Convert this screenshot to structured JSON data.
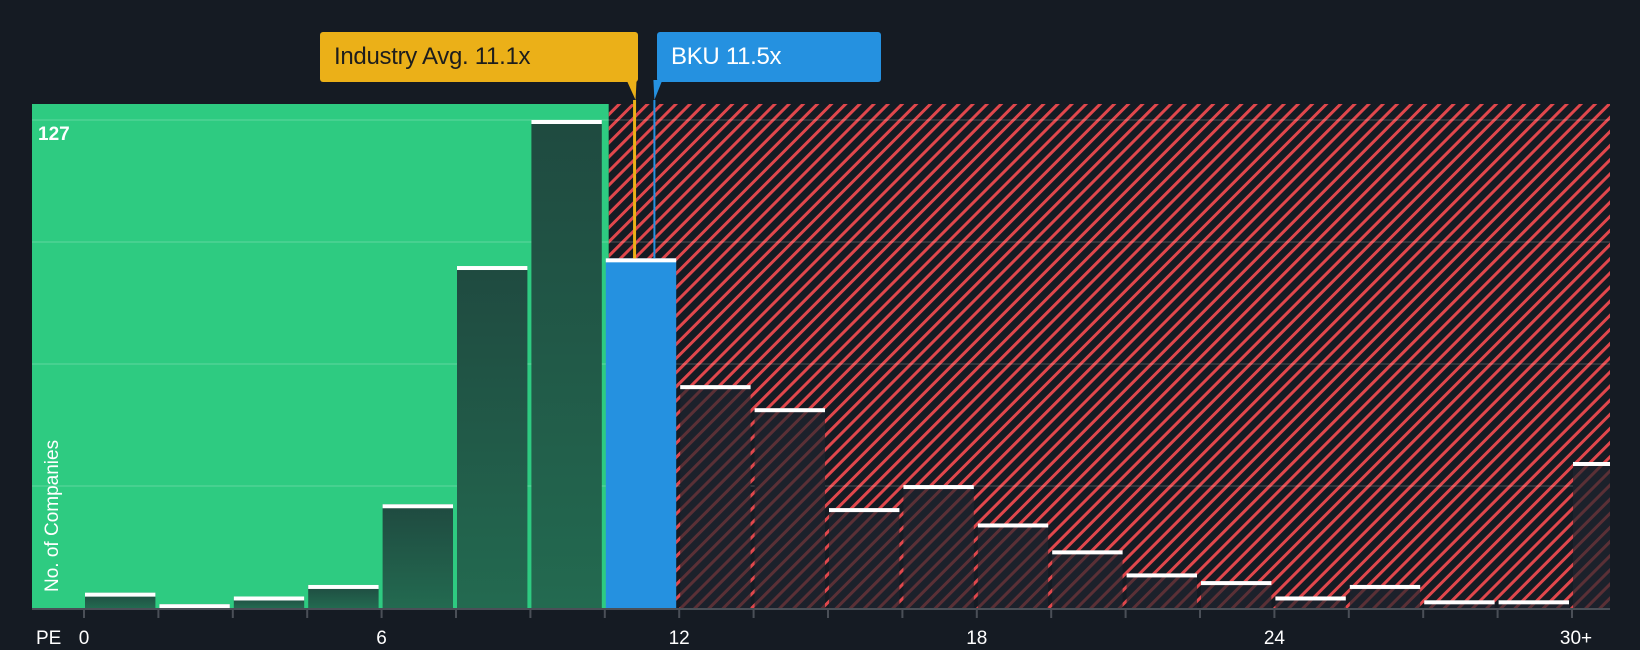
{
  "callouts": {
    "industry": {
      "label": "Industry Avg. 11.1x",
      "value": 11.1,
      "color": "#ebb018"
    },
    "company": {
      "label": "BKU 11.5x",
      "ticker": "BKU",
      "value": 11.5,
      "color": "#2591e0"
    }
  },
  "axis": {
    "y_label": "No. of Companies",
    "y_max_label": "127",
    "x_prefix": "PE",
    "x_ticks": [
      {
        "label": "0",
        "pos": 0
      },
      {
        "label": "6",
        "pos": 6
      },
      {
        "label": "12",
        "pos": 12
      },
      {
        "label": "18",
        "pos": 18
      },
      {
        "label": "24",
        "pos": 24
      },
      {
        "label": "30+",
        "pos": 30
      }
    ]
  },
  "colors": {
    "background": "#151b23",
    "green_zone": "#2ecb81",
    "green_bar": "#215e4a",
    "highlight_bar": "#2591e0",
    "red_hatch": "#e0474c",
    "dark_bar": "#1c212b",
    "bar_cap": "#ffffff"
  },
  "chart_data": {
    "type": "bar",
    "title": "",
    "xlabel": "PE",
    "ylabel": "No. of Companies",
    "ylim": [
      0,
      127
    ],
    "grid": true,
    "bin_width": 1.5,
    "categories": [
      "0-1.5",
      "1.5-3",
      "3-4.5",
      "4.5-6",
      "6-7.5",
      "7.5-9",
      "9-10.5",
      "10.5-12",
      "12-13.5",
      "13.5-15",
      "15-16.5",
      "16.5-18",
      "18-19.5",
      "19.5-21",
      "21-22.5",
      "22.5-24",
      "24-25.5",
      "25.5-27",
      "27-28.5",
      "28.5-30",
      "30+"
    ],
    "values": [
      4,
      1,
      3,
      6,
      27,
      89,
      127,
      91,
      58,
      52,
      26,
      32,
      22,
      15,
      9,
      7,
      3,
      6,
      2,
      2,
      38
    ],
    "highlight_index": 7,
    "markers": [
      {
        "name": "Industry Avg.",
        "value": 11.1
      },
      {
        "name": "BKU",
        "value": 11.5
      }
    ],
    "zones": [
      {
        "name": "undervalued",
        "from": 0,
        "to": 11.1,
        "color": "#2ecb81"
      },
      {
        "name": "overvalued",
        "from": 11.1,
        "to": 31.5,
        "color": "#e0474c"
      }
    ]
  }
}
